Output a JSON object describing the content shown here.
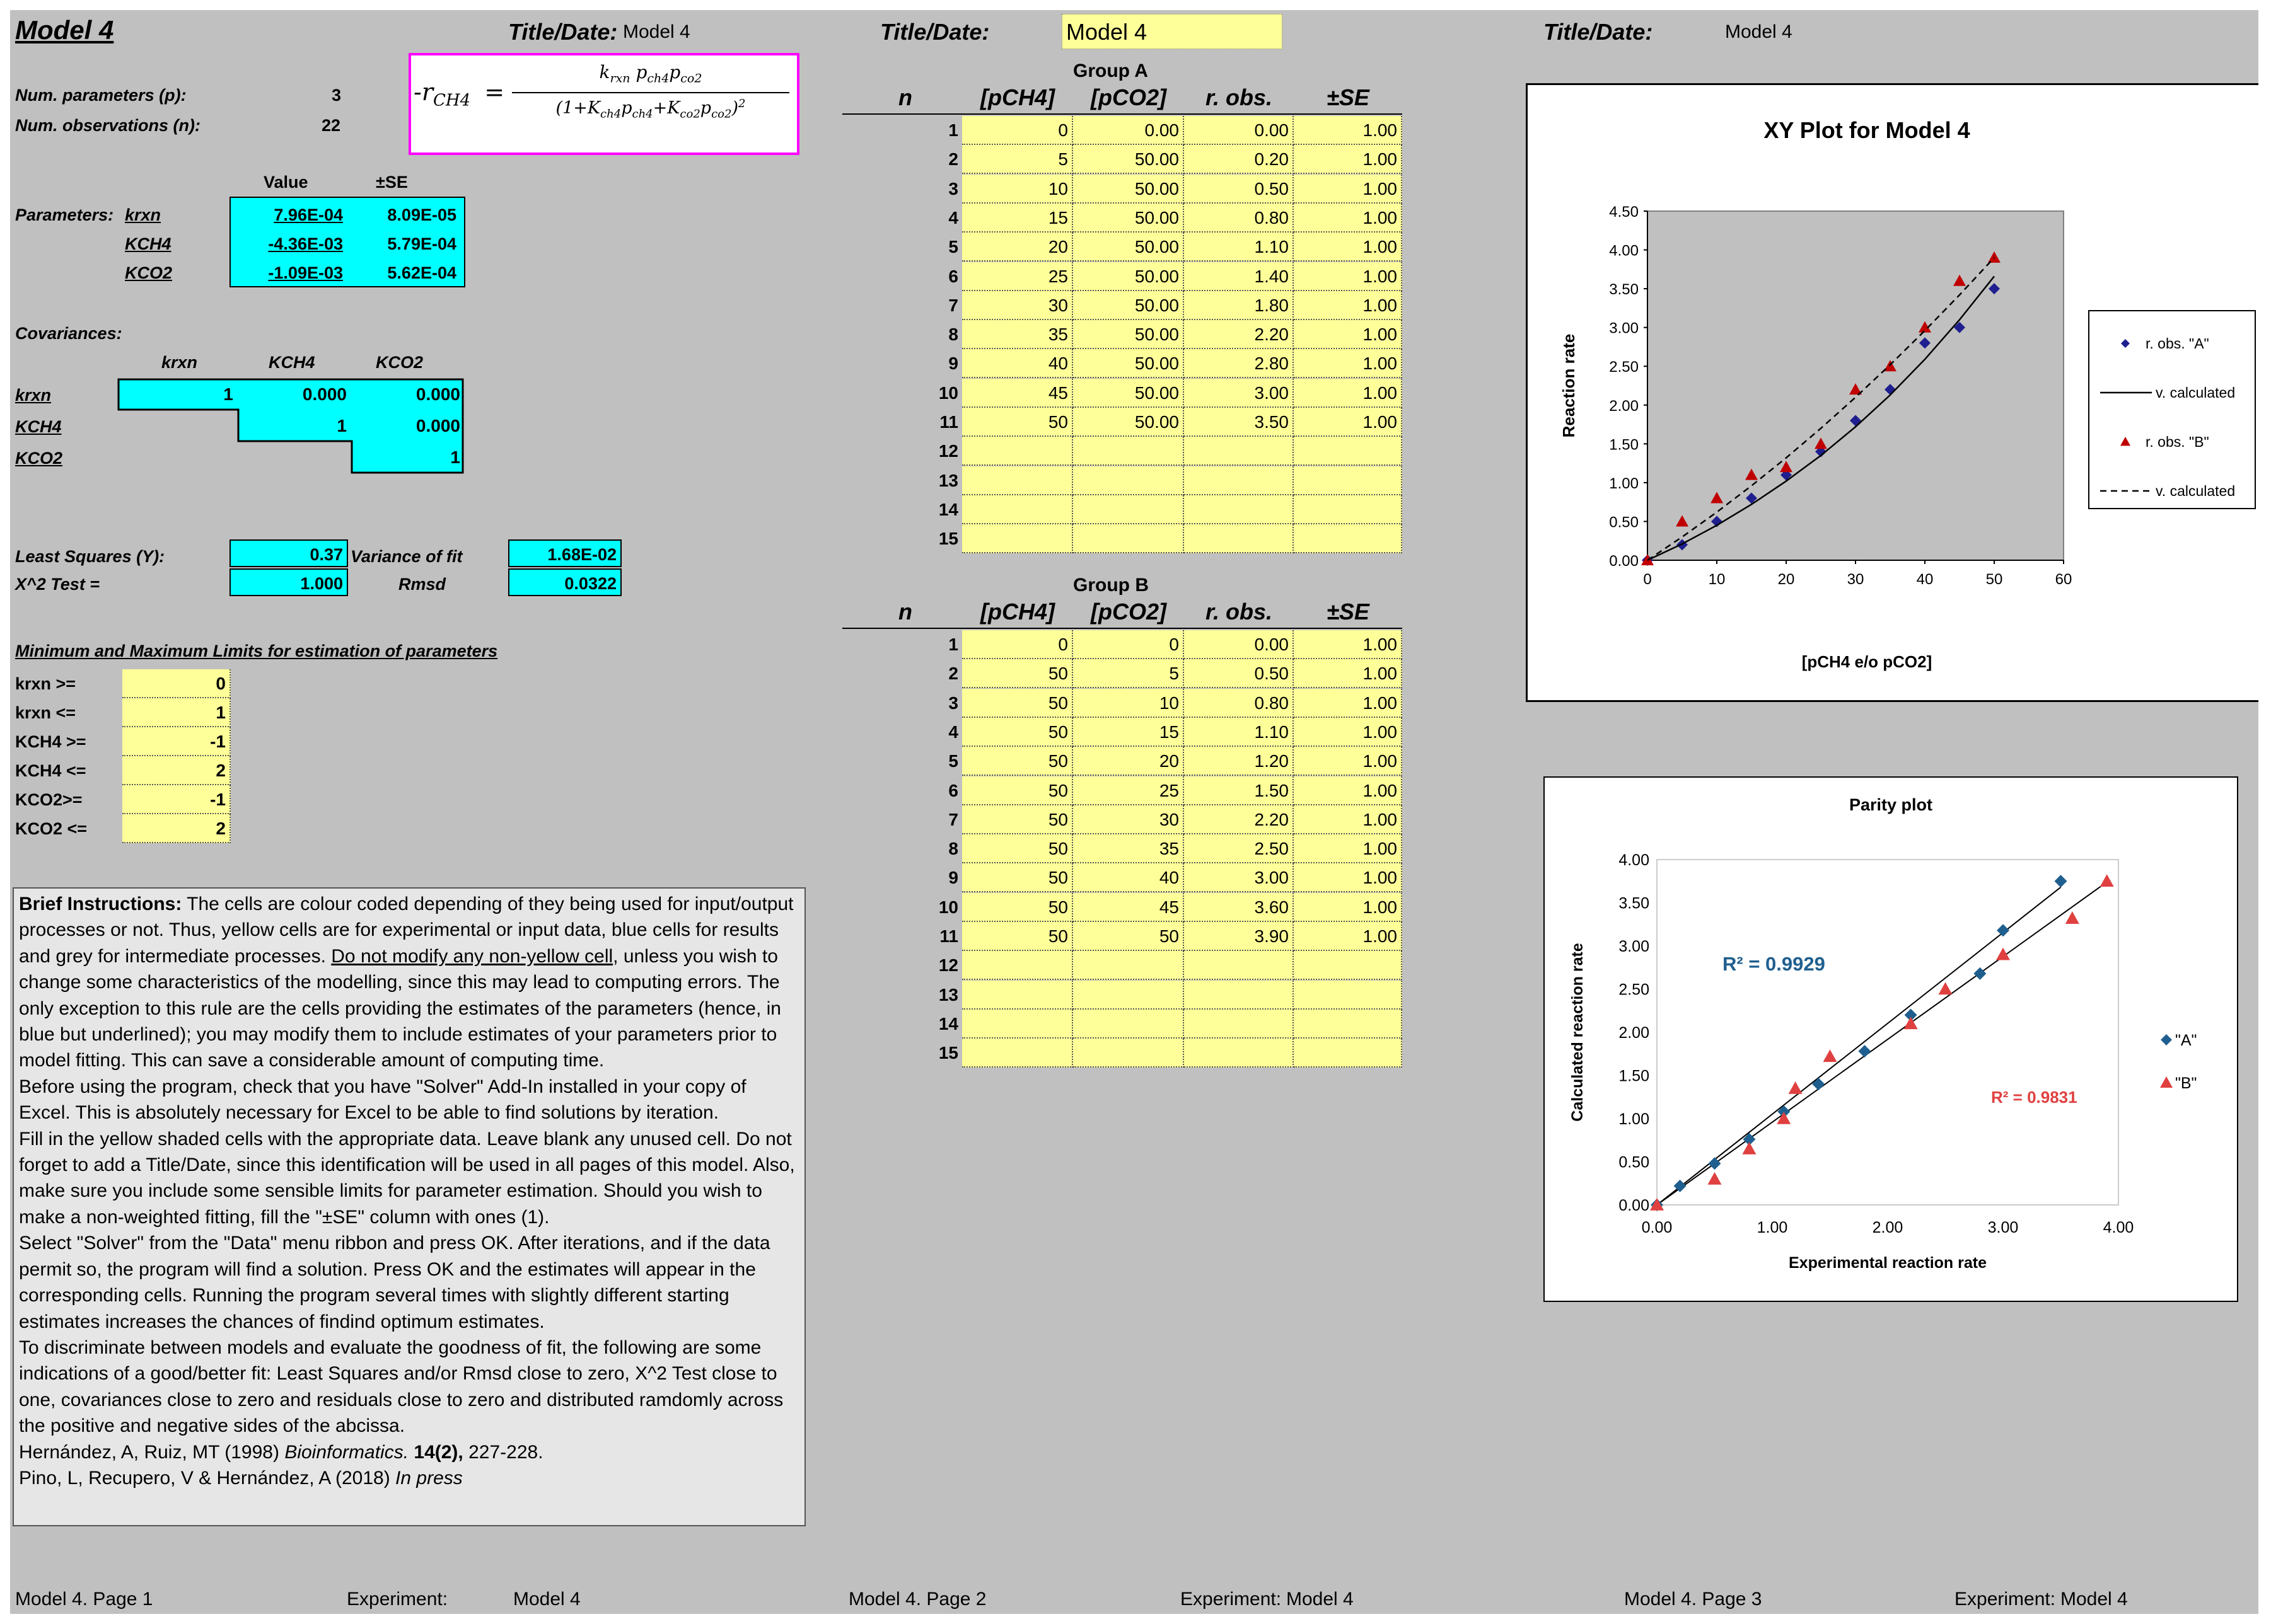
{
  "page1": {
    "model_title": "Model 4",
    "title_date_label": "Title/Date:",
    "title_date_value": "Model 4",
    "num_params_label": "Num. parameters (p):",
    "num_params_value": "3",
    "num_obs_label": "Num. observations (n):",
    "num_obs_value": "22",
    "equation": {
      "lhs": "-r",
      "lhs_sub": "CH4",
      "eq": "=",
      "numerator": "k_rxn p_ch4 p_co2",
      "denominator": "(1+K_ch4 p_ch4 + K_co2 p_co2)^2"
    },
    "params_header": {
      "value": "Value",
      "se": "±SE"
    },
    "params_label": "Parameters:",
    "params": [
      {
        "name": "krxn",
        "value": "7.96E-04",
        "se": "8.09E-05"
      },
      {
        "name": "KCH4",
        "value": "-4.36E-03",
        "se": "5.79E-04"
      },
      {
        "name": "KCO2",
        "value": "-1.09E-03",
        "se": "5.62E-04"
      }
    ],
    "cov_label": "Covariances:",
    "cov_cols": [
      "krxn",
      "KCH4",
      "KCO2"
    ],
    "cov_rows": [
      {
        "name": "krxn",
        "vals": [
          "1",
          "0.000",
          "0.000"
        ]
      },
      {
        "name": "KCH4",
        "vals": [
          "",
          "1",
          "0.000"
        ]
      },
      {
        "name": "KCO2",
        "vals": [
          "",
          "",
          "1"
        ]
      }
    ],
    "ls_label": "Least Squares (Y):",
    "ls_value": "0.37",
    "var_label": "Variance of fit",
    "var_value": "1.68E-02",
    "x2_label": "X^2 Test  =",
    "x2_value": "1.000",
    "rmsd_label": "Rmsd",
    "rmsd_value": "0.0322",
    "limits_title": "Minimum and Maximum Limits for estimation of parameters",
    "limits": [
      {
        "label": "krxn >=",
        "value": "0"
      },
      {
        "label": "krxn <=",
        "value": "1"
      },
      {
        "label": "KCH4 >=",
        "value": "-1"
      },
      {
        "label": "KCH4 <=",
        "value": "2"
      },
      {
        "label": "KCO2>=",
        "value": "-1"
      },
      {
        "label": "KCO2 <=",
        "value": "2"
      }
    ],
    "instructions": {
      "heading": "Brief Instructions:",
      "p1_a": "The cells are colour coded depending of they being used for input/output processes or not. Thus, yellow cells are for experimental or input data, blue cells for results and grey for intermediate processes.",
      "p1_ul": "Do not modify any non-yellow cell",
      "p1_b": ", unless you wish to change some characteristics of  the modelling, since this may lead to computing errors. The only exception to this rule are the cells providing the estimates of the parameters (hence, in blue but underlined); you may modify them to include estimates of your parameters prior to model fitting. This can save a considerable amount of computing time.",
      "p2": "Before using the program, check that you have \"Solver\" Add-In installed in your copy of Excel. This is absolutely necessary for Excel to be able to find solutions by iteration.",
      "p3": "Fill in the yellow shaded cells with the appropriate data. Leave blank any unused cell. Do not forget to add a Title/Date, since this identification will be used in all pages of this model. Also, make sure you include some sensible limits for parameter estimation. Should you wish to make a non-weighted fitting, fill the \"±SE\" column with  ones (1).",
      "p4": "Select \"Solver\" from the \"Data\" menu ribbon and press OK. After iterations, and if the data permit so, the program will find a solution. Press OK and the estimates will appear in the corresponding cells. Running the program several times with slightly different starting estimates increases the chances of findind optimum estimates.",
      "p5": "To discriminate between models and evaluate the goodness of fit, the following are some indications of a good/better fit: Least Squares and/or Rmsd close to zero, X^2 Test close to one, covariances close to zero and residuals close to zero and distributed ramdomly across the positive and negative sides of the abcissa.",
      "ref1_a": "Hernández, A, Ruiz, MT (1998)",
      "ref1_i": "Bioinformatics.",
      "ref1_b": "14(2),",
      "ref1_c": "227-228.",
      "ref2_a": "Pino, L, Recupero, V & Hernández, A (2018)",
      "ref2_i": "In press"
    },
    "footer_page": "Model 4. Page 1",
    "footer_exp_label": "Experiment:",
    "footer_exp_value": "Model 4"
  },
  "page2": {
    "title_date_label": "Title/Date:",
    "title_date_value": "Model 4",
    "groupA": {
      "title": "Group A",
      "headers": [
        "n",
        "[pCH4]",
        "[pCO2]",
        "r. obs. \"A\"",
        "±SE"
      ],
      "rows": [
        [
          "1",
          "0",
          "0.00",
          "0.00",
          "1.00"
        ],
        [
          "2",
          "5",
          "50.00",
          "0.20",
          "1.00"
        ],
        [
          "3",
          "10",
          "50.00",
          "0.50",
          "1.00"
        ],
        [
          "4",
          "15",
          "50.00",
          "0.80",
          "1.00"
        ],
        [
          "5",
          "20",
          "50.00",
          "1.10",
          "1.00"
        ],
        [
          "6",
          "25",
          "50.00",
          "1.40",
          "1.00"
        ],
        [
          "7",
          "30",
          "50.00",
          "1.80",
          "1.00"
        ],
        [
          "8",
          "35",
          "50.00",
          "2.20",
          "1.00"
        ],
        [
          "9",
          "40",
          "50.00",
          "2.80",
          "1.00"
        ],
        [
          "10",
          "45",
          "50.00",
          "3.00",
          "1.00"
        ],
        [
          "11",
          "50",
          "50.00",
          "3.50",
          "1.00"
        ],
        [
          "12",
          "",
          "",
          "",
          ""
        ],
        [
          "13",
          "",
          "",
          "",
          ""
        ],
        [
          "14",
          "",
          "",
          "",
          ""
        ],
        [
          "15",
          "",
          "",
          "",
          ""
        ]
      ]
    },
    "groupB": {
      "title": "Group B",
      "headers": [
        "n",
        "[pCH4]",
        "[pCO2]",
        "r. obs. \"B\"",
        "±SE"
      ],
      "rows": [
        [
          "1",
          "0",
          "0",
          "0.00",
          "1.00"
        ],
        [
          "2",
          "50",
          "5",
          "0.50",
          "1.00"
        ],
        [
          "3",
          "50",
          "10",
          "0.80",
          "1.00"
        ],
        [
          "4",
          "50",
          "15",
          "1.10",
          "1.00"
        ],
        [
          "5",
          "50",
          "20",
          "1.20",
          "1.00"
        ],
        [
          "6",
          "50",
          "25",
          "1.50",
          "1.00"
        ],
        [
          "7",
          "50",
          "30",
          "2.20",
          "1.00"
        ],
        [
          "8",
          "50",
          "35",
          "2.50",
          "1.00"
        ],
        [
          "9",
          "50",
          "40",
          "3.00",
          "1.00"
        ],
        [
          "10",
          "50",
          "45",
          "3.60",
          "1.00"
        ],
        [
          "11",
          "50",
          "50",
          "3.90",
          "1.00"
        ],
        [
          "12",
          "",
          "",
          "",
          ""
        ],
        [
          "13",
          "",
          "",
          "",
          ""
        ],
        [
          "14",
          "",
          "",
          "",
          ""
        ],
        [
          "15",
          "",
          "",
          "",
          ""
        ]
      ]
    },
    "footer_page": "Model 4. Page 2",
    "footer_exp_label": "Experiment:",
    "footer_exp_value": "Model 4"
  },
  "page3": {
    "title_date_label": "Title/Date:",
    "title_date_value": "Model 4",
    "footer_page": "Model 4. Page 3",
    "footer_exp_label": "Experiment:",
    "footer_exp_value": "Model 4"
  },
  "chart_data": [
    {
      "type": "scatter",
      "title": "XY Plot for  Model 4",
      "xlabel": "[pCH4 e/o pCO2]",
      "ylabel": "Reaction rate",
      "xlim": [
        0,
        60
      ],
      "ylim": [
        0,
        4.5
      ],
      "xticks": [
        "0",
        "10",
        "20",
        "30",
        "40",
        "50",
        "60"
      ],
      "yticks": [
        "0.00",
        "0.50",
        "1.00",
        "1.50",
        "2.00",
        "2.50",
        "3.00",
        "3.50",
        "4.00",
        "4.50"
      ],
      "legend_position": "right",
      "colors": {
        "A": "#1f1f8f",
        "B": "#c00000",
        "line": "#000000"
      },
      "series": [
        {
          "name": "r. obs. \"A\"",
          "kind": "marker-diamond",
          "x": [
            0,
            5,
            10,
            15,
            20,
            25,
            30,
            35,
            40,
            45,
            50
          ],
          "y": [
            0,
            0.2,
            0.5,
            0.8,
            1.1,
            1.4,
            1.8,
            2.2,
            2.8,
            3.0,
            3.5
          ]
        },
        {
          "name": "v. calculated",
          "kind": "line-solid",
          "x": [
            0,
            5,
            10,
            15,
            20,
            25,
            30,
            35,
            40,
            45,
            50
          ],
          "y": [
            0,
            0.21,
            0.45,
            0.72,
            1.02,
            1.35,
            1.72,
            2.13,
            2.59,
            3.1,
            3.66
          ]
        },
        {
          "name": "r. obs. \"B\"",
          "kind": "marker-triangle",
          "x": [
            0,
            5,
            10,
            15,
            20,
            25,
            30,
            35,
            40,
            45,
            50
          ],
          "y": [
            0,
            0.5,
            0.8,
            1.1,
            1.2,
            1.5,
            2.2,
            2.5,
            3.0,
            3.6,
            3.9
          ]
        },
        {
          "name": "v. calculated",
          "kind": "line-dashed",
          "x": [
            0,
            5,
            10,
            15,
            20,
            25,
            30,
            35,
            40,
            45,
            50
          ],
          "y": [
            0,
            0.3,
            0.62,
            0.96,
            1.32,
            1.7,
            2.1,
            2.52,
            2.96,
            3.42,
            3.9
          ]
        }
      ]
    },
    {
      "type": "scatter",
      "title": "Parity plot",
      "xlabel": "Experimental reaction rate",
      "ylabel": "Calculated reaction rate",
      "xlim": [
        0,
        4
      ],
      "ylim": [
        0,
        4
      ],
      "xticks": [
        "0.00",
        "1.00",
        "2.00",
        "3.00",
        "4.00"
      ],
      "yticks": [
        "0.00",
        "0.50",
        "1.00",
        "1.50",
        "2.00",
        "2.50",
        "3.00",
        "3.50",
        "4.00"
      ],
      "legend_position": "right",
      "colors": {
        "A": "#1f5f8f",
        "B": "#e04040"
      },
      "annotations": [
        {
          "text": "R² = 0.9929",
          "series": "A"
        },
        {
          "text": "R² = 0.9831",
          "series": "B"
        }
      ],
      "series": [
        {
          "name": "\"A\"",
          "kind": "marker-diamond",
          "x": [
            0,
            0.2,
            0.5,
            0.8,
            1.1,
            1.4,
            1.8,
            2.2,
            2.8,
            3.0,
            3.5
          ],
          "y": [
            0,
            0.22,
            0.48,
            0.76,
            1.08,
            1.4,
            1.78,
            2.2,
            2.68,
            3.18,
            3.75
          ]
        },
        {
          "name": "\"B\"",
          "kind": "marker-triangle",
          "x": [
            0,
            0.5,
            0.8,
            1.1,
            1.2,
            1.5,
            2.2,
            2.5,
            3.0,
            3.6,
            3.9
          ],
          "y": [
            0,
            0.3,
            0.65,
            1.0,
            1.35,
            1.72,
            2.1,
            2.5,
            2.9,
            3.32,
            3.75
          ]
        }
      ]
    }
  ]
}
